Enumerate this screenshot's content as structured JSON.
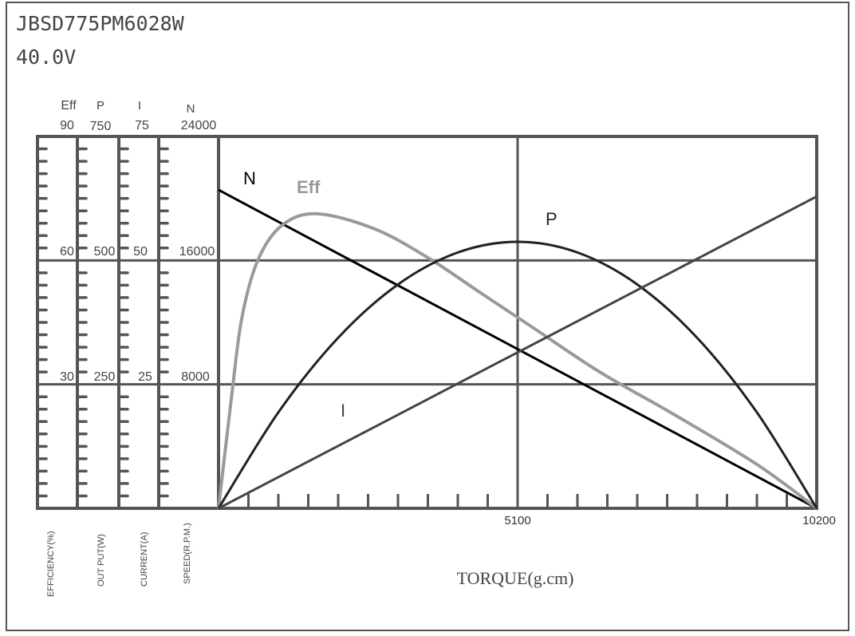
{
  "header": {
    "model": "JBSD775PM6028W",
    "voltage": "40.0V"
  },
  "chart_data": {
    "type": "line",
    "xlabel": "TORQUE(g.cm)",
    "xlim": [
      0,
      10200
    ],
    "x_ticks": [
      "5100",
      "10200"
    ],
    "grid": true,
    "axes": [
      {
        "key": "Eff",
        "name": "Eff",
        "label": "EFFICIENCY(%)",
        "max": 90,
        "ticks": [
          "90",
          "60",
          "30"
        ],
        "range": [
          0,
          90
        ]
      },
      {
        "key": "P",
        "name": "P",
        "label": "OUT PUT(W)",
        "max": 750,
        "ticks": [
          "750",
          "500",
          "250"
        ],
        "range": [
          0,
          750
        ]
      },
      {
        "key": "I",
        "name": "I",
        "label": "CURRENT(A)",
        "max": 75,
        "ticks": [
          "75",
          "50",
          "25"
        ],
        "range": [
          0,
          75
        ]
      },
      {
        "key": "N",
        "name": "N",
        "label": "SPEED(R.P.M.)",
        "max": 24000,
        "ticks": [
          "24000",
          "16000",
          "8000"
        ],
        "range": [
          0,
          24000
        ]
      }
    ],
    "series": [
      {
        "name": "N",
        "axis": "N",
        "color": "#000000",
        "points": [
          [
            0,
            20550
          ],
          [
            10200,
            0
          ]
        ]
      },
      {
        "name": "Eff",
        "axis": "Eff",
        "color": "#9a9a9a",
        "points": [
          [
            0,
            0
          ],
          [
            218,
            26.5
          ],
          [
            394,
            45.8
          ],
          [
            666,
            59.9
          ],
          [
            1074,
            68.4
          ],
          [
            1673,
            71.3
          ],
          [
            2666,
            67.6
          ],
          [
            3577,
            60.6
          ],
          [
            4474,
            52.1
          ],
          [
            5386,
            43.5
          ],
          [
            6500,
            33
          ],
          [
            7793,
            22.5
          ],
          [
            9194,
            10.5
          ],
          [
            10200,
            0
          ]
        ]
      },
      {
        "name": "P",
        "axis": "P",
        "color": "#222222",
        "points": [
          [
            0,
            0
          ],
          [
            1020,
            193.5
          ],
          [
            2040,
            344
          ],
          [
            3060,
            451.5
          ],
          [
            4080,
            516
          ],
          [
            5100,
            537.5
          ],
          [
            6120,
            516
          ],
          [
            7140,
            451.5
          ],
          [
            8160,
            344
          ],
          [
            9180,
            193.5
          ],
          [
            10200,
            0
          ]
        ]
      },
      {
        "name": "I",
        "axis": "I",
        "color": "#444444",
        "points": [
          [
            0,
            0
          ],
          [
            10200,
            62.9
          ]
        ]
      }
    ]
  }
}
